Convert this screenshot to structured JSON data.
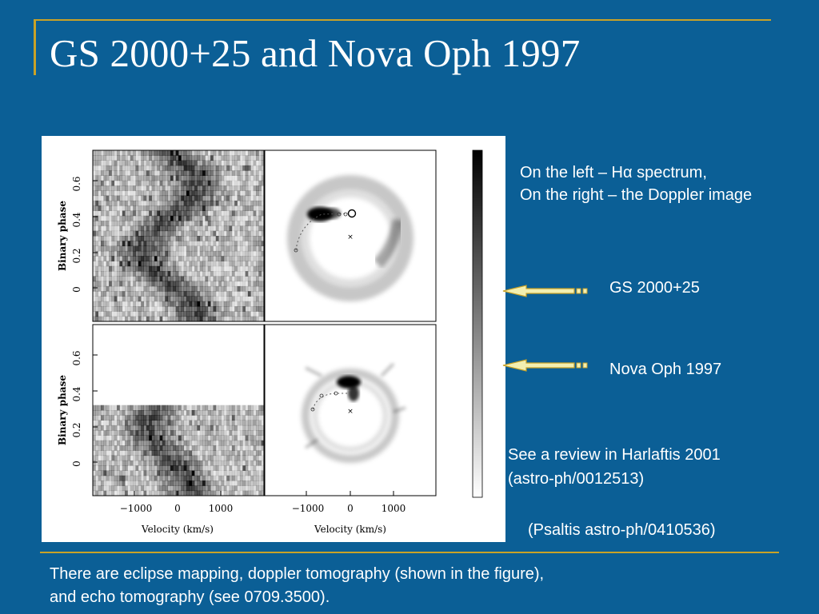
{
  "slide": {
    "title": "GS 2000+25 and Nova Oph 1997",
    "colors": {
      "background": "#0b5f96",
      "accent_gold": "#c9a227",
      "text": "#ffffff",
      "arrow_fill": "#f3efb0"
    }
  },
  "figure": {
    "y_axis_label": "Binary phase",
    "y_ticks": [
      "0.6",
      "0.4",
      "0.2",
      "0"
    ],
    "x_axis_label": "Velocity (km/s)",
    "x_ticks": [
      "−1000",
      "0",
      "1000"
    ],
    "panels": [
      "GS 2000+25 Hα trailed spectrum",
      "GS 2000+25 Doppler map",
      "Nova Oph 1997 Hα trailed spectrum",
      "Nova Oph 1997 Doppler map"
    ],
    "colorbar": "grayscale black to white"
  },
  "annotations": {
    "description_line1": "On the left –  Hα spectrum,",
    "description_line2": "On the right – the Doppler image",
    "label_gs": "GS 2000+25",
    "label_nova": "Nova Oph 1997",
    "review_line1": "See a review in Harlaftis 2001",
    "review_line2": "(astro-ph/0012513)",
    "psaltis_ref": "(Psaltis astro-ph/0410536)"
  },
  "footer": {
    "line1": "There are eclipse mapping, doppler tomography (shown in the figure),",
    "line2": "and echo tomography (see 0709.3500)."
  },
  "icons": [
    "left-arrow-icon",
    "left-arrow-icon"
  ]
}
